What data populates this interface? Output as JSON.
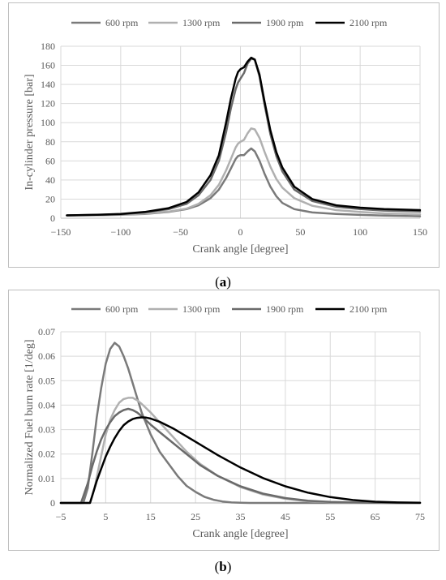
{
  "panels": {
    "a": {
      "label_open": "(",
      "label_letter": "a",
      "label_close": ")"
    },
    "b": {
      "label_open": "(",
      "label_letter": "b",
      "label_close": ")"
    }
  },
  "chart_data": [
    {
      "type": "line",
      "title": "",
      "xlabel": "Crank angle [degree]",
      "ylabel": "In-cylinder pressure [bar]",
      "xlim": [
        -150,
        150
      ],
      "ylim": [
        0,
        180
      ],
      "xticks": [
        -150,
        -100,
        -50,
        0,
        50,
        100,
        150
      ],
      "yticks": [
        0,
        20,
        40,
        60,
        80,
        100,
        120,
        140,
        160,
        180
      ],
      "xtick_labels": [
        "−150",
        "−100",
        "−50",
        "0",
        "50",
        "100",
        "150"
      ],
      "ytick_labels": [
        "0",
        "20",
        "40",
        "60",
        "80",
        "100",
        "120",
        "140",
        "160",
        "180"
      ],
      "grid": true,
      "legend_position": "top",
      "series": [
        {
          "name": "600 rpm",
          "color": "#7a7a7a",
          "x": [
            -145,
            -120,
            -100,
            -80,
            -60,
            -45,
            -35,
            -25,
            -18,
            -12,
            -8,
            -4,
            -2,
            0,
            3,
            6,
            9,
            12,
            16,
            20,
            25,
            30,
            35,
            45,
            60,
            80,
            100,
            120,
            150
          ],
          "y": [
            3,
            3.2,
            3.6,
            4.5,
            6.5,
            9.5,
            13.5,
            21,
            30,
            42,
            52,
            62,
            65,
            66,
            66,
            70,
            73,
            70,
            60,
            47,
            33,
            23,
            16,
            9.5,
            6,
            4.5,
            3.5,
            2.8,
            2
          ]
        },
        {
          "name": "1300 rpm",
          "color": "#b0b0b0",
          "x": [
            -145,
            -120,
            -100,
            -80,
            -60,
            -45,
            -35,
            -25,
            -18,
            -12,
            -8,
            -4,
            -2,
            0,
            3,
            6,
            9,
            12,
            16,
            20,
            25,
            30,
            35,
            45,
            60,
            80,
            100,
            120,
            150
          ],
          "y": [
            3,
            3.3,
            3.8,
            4.8,
            7,
            10,
            15,
            24,
            35,
            50,
            62,
            74,
            78,
            80,
            82,
            89,
            94,
            93,
            84,
            70,
            54,
            41,
            32,
            21,
            13,
            8.5,
            6.5,
            5,
            4
          ]
        },
        {
          "name": "1900 rpm",
          "color": "#6a6a6a",
          "x": [
            -145,
            -120,
            -100,
            -80,
            -60,
            -45,
            -35,
            -25,
            -18,
            -12,
            -8,
            -4,
            -2,
            0,
            3,
            6,
            9,
            12,
            16,
            20,
            25,
            30,
            35,
            45,
            60,
            80,
            100,
            120,
            150
          ],
          "y": [
            3,
            3.5,
            4.2,
            6,
            9.5,
            15,
            24,
            40,
            60,
            90,
            115,
            135,
            142,
            146,
            152,
            162,
            167,
            166,
            148,
            120,
            88,
            65,
            49,
            30,
            18,
            12,
            9.5,
            8,
            7
          ]
        },
        {
          "name": "2100 rpm",
          "color": "#000000",
          "x": [
            -145,
            -120,
            -100,
            -80,
            -60,
            -45,
            -35,
            -25,
            -18,
            -12,
            -8,
            -4,
            -2,
            0,
            3,
            6,
            9,
            12,
            16,
            20,
            25,
            30,
            35,
            45,
            60,
            80,
            100,
            120,
            150
          ],
          "y": [
            3,
            3.6,
            4.4,
            6.5,
            10.5,
            17,
            27,
            45,
            66,
            100,
            125,
            146,
            153,
            156,
            158,
            164,
            168,
            166,
            150,
            123,
            92,
            69,
            53,
            33,
            20,
            13.5,
            11,
            9.5,
            8.5
          ]
        }
      ]
    },
    {
      "type": "line",
      "title": "",
      "xlabel": "Crank angle [degree]",
      "ylabel": "Normalized Fuel burn rate [1/deg]",
      "xlim": [
        -5,
        75
      ],
      "ylim": [
        0,
        0.07
      ],
      "xticks": [
        -5,
        5,
        15,
        25,
        35,
        45,
        55,
        65,
        75
      ],
      "yticks": [
        0,
        0.01,
        0.02,
        0.03,
        0.04,
        0.05,
        0.06,
        0.07
      ],
      "xtick_labels": [
        "−5",
        "5",
        "15",
        "25",
        "35",
        "45",
        "55",
        "65",
        "75"
      ],
      "ytick_labels": [
        "0",
        "0.01",
        "0.02",
        "0.03",
        "0.04",
        "0.05",
        "0.06",
        "0.07"
      ],
      "grid": true,
      "legend_position": "top",
      "series": [
        {
          "name": "600 rpm",
          "color": "#7a7a7a",
          "x": [
            -5,
            0,
            1,
            2,
            3,
            4,
            5,
            6,
            7,
            8,
            9,
            10,
            11,
            12,
            13,
            15,
            17,
            19,
            21,
            23,
            25,
            27,
            29,
            31,
            33,
            35,
            37,
            40,
            45,
            75
          ],
          "y": [
            0,
            0,
            0.006,
            0.02,
            0.035,
            0.047,
            0.057,
            0.063,
            0.0655,
            0.064,
            0.06,
            0.055,
            0.049,
            0.043,
            0.037,
            0.028,
            0.021,
            0.016,
            0.011,
            0.007,
            0.0045,
            0.0025,
            0.0013,
            0.0006,
            0.0002,
            0.0001,
            0,
            0,
            0,
            0
          ]
        },
        {
          "name": "1300 rpm",
          "color": "#b0b0b0",
          "x": [
            -5,
            1.5,
            2.5,
            3.5,
            5,
            6,
            7,
            8,
            9,
            10,
            11,
            12,
            13,
            15,
            17,
            20,
            23,
            26,
            30,
            35,
            40,
            45,
            50,
            55,
            60,
            65,
            70,
            75
          ],
          "y": [
            0,
            0,
            0.006,
            0.015,
            0.028,
            0.034,
            0.038,
            0.041,
            0.0425,
            0.043,
            0.043,
            0.042,
            0.0405,
            0.037,
            0.033,
            0.027,
            0.021,
            0.016,
            0.011,
            0.0065,
            0.0035,
            0.0017,
            0.0007,
            0.0003,
            0.0001,
            0,
            0,
            0
          ]
        },
        {
          "name": "1900 rpm",
          "color": "#6a6a6a",
          "x": [
            -5,
            -0.5,
            1,
            2,
            3,
            4,
            5,
            6,
            7,
            8,
            9,
            10,
            11,
            12,
            13,
            15,
            17,
            20,
            23,
            26,
            30,
            35,
            40,
            45,
            50,
            55,
            60,
            65,
            70,
            75
          ],
          "y": [
            0,
            0,
            0.008,
            0.015,
            0.021,
            0.026,
            0.03,
            0.033,
            0.0355,
            0.037,
            0.038,
            0.0385,
            0.038,
            0.037,
            0.0355,
            0.032,
            0.029,
            0.0245,
            0.02,
            0.0155,
            0.011,
            0.0068,
            0.0038,
            0.002,
            0.0009,
            0.0004,
            0.0002,
            0.0001,
            0,
            0
          ]
        },
        {
          "name": "2100 rpm",
          "color": "#000000",
          "x": [
            -5,
            1.5,
            2,
            3,
            4,
            5,
            6,
            7,
            8,
            9,
            10,
            11,
            12,
            13,
            14,
            15,
            17,
            20,
            25,
            30,
            35,
            40,
            45,
            50,
            55,
            60,
            65,
            70,
            75
          ],
          "y": [
            0,
            0,
            0.003,
            0.009,
            0.014,
            0.019,
            0.023,
            0.0265,
            0.0295,
            0.0318,
            0.0333,
            0.0343,
            0.0348,
            0.035,
            0.0349,
            0.0345,
            0.0332,
            0.0305,
            0.025,
            0.0195,
            0.0145,
            0.0102,
            0.0068,
            0.0042,
            0.0024,
            0.0012,
            0.0005,
            0.0002,
            0.0001
          ]
        }
      ]
    }
  ]
}
